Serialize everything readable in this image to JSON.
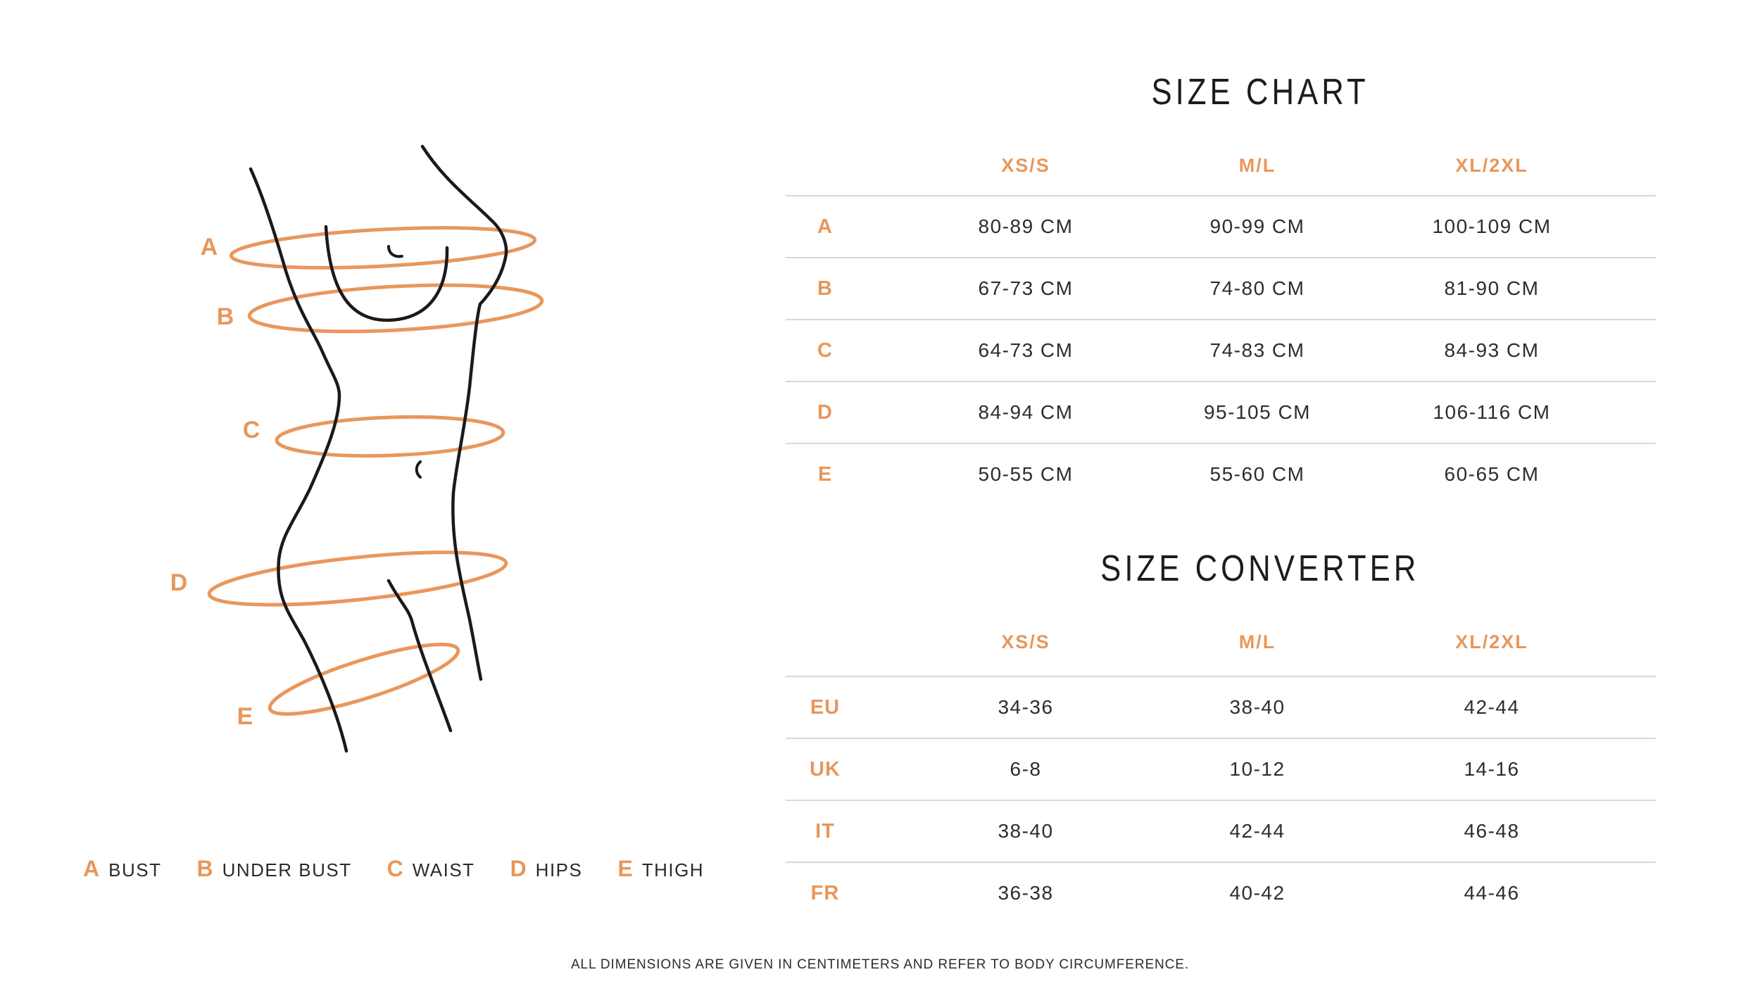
{
  "accent_color": "#E8975C",
  "line_color": "#1a1a1a",
  "figure": {
    "labels": [
      "A",
      "B",
      "C",
      "D",
      "E"
    ]
  },
  "size_chart": {
    "title": "SIZE CHART",
    "columns": [
      "XS/S",
      "M/L",
      "XL/2XL"
    ],
    "rows": [
      {
        "label": "A",
        "values": [
          "80-89 CM",
          "90-99 CM",
          "100-109 CM"
        ]
      },
      {
        "label": "B",
        "values": [
          "67-73 CM",
          "74-80 CM",
          "81-90 CM"
        ]
      },
      {
        "label": "C",
        "values": [
          "64-73 CM",
          "74-83 CM",
          "84-93 CM"
        ]
      },
      {
        "label": "D",
        "values": [
          "84-94 CM",
          "95-105 CM",
          "106-116 CM"
        ]
      },
      {
        "label": "E",
        "values": [
          "50-55 CM",
          "55-60 CM",
          "60-65 CM"
        ]
      }
    ]
  },
  "size_converter": {
    "title": "SIZE CONVERTER",
    "columns": [
      "XS/S",
      "M/L",
      "XL/2XL"
    ],
    "rows": [
      {
        "label": "EU",
        "values": [
          "34-36",
          "38-40",
          "42-44"
        ]
      },
      {
        "label": "UK",
        "values": [
          "6-8",
          "10-12",
          "14-16"
        ]
      },
      {
        "label": "IT",
        "values": [
          "38-40",
          "42-44",
          "46-48"
        ]
      },
      {
        "label": "FR",
        "values": [
          "36-38",
          "40-42",
          "44-46"
        ]
      }
    ]
  },
  "legend": {
    "items": [
      {
        "key": "A",
        "label": "BUST"
      },
      {
        "key": "B",
        "label": "UNDER BUST"
      },
      {
        "key": "C",
        "label": "WAIST"
      },
      {
        "key": "D",
        "label": "HIPS"
      },
      {
        "key": "E",
        "label": "THIGH"
      }
    ]
  },
  "footer": {
    "note": "ALL DIMENSIONS ARE GIVEN IN CENTIMETERS AND REFER TO BODY CIRCUMFERENCE."
  }
}
